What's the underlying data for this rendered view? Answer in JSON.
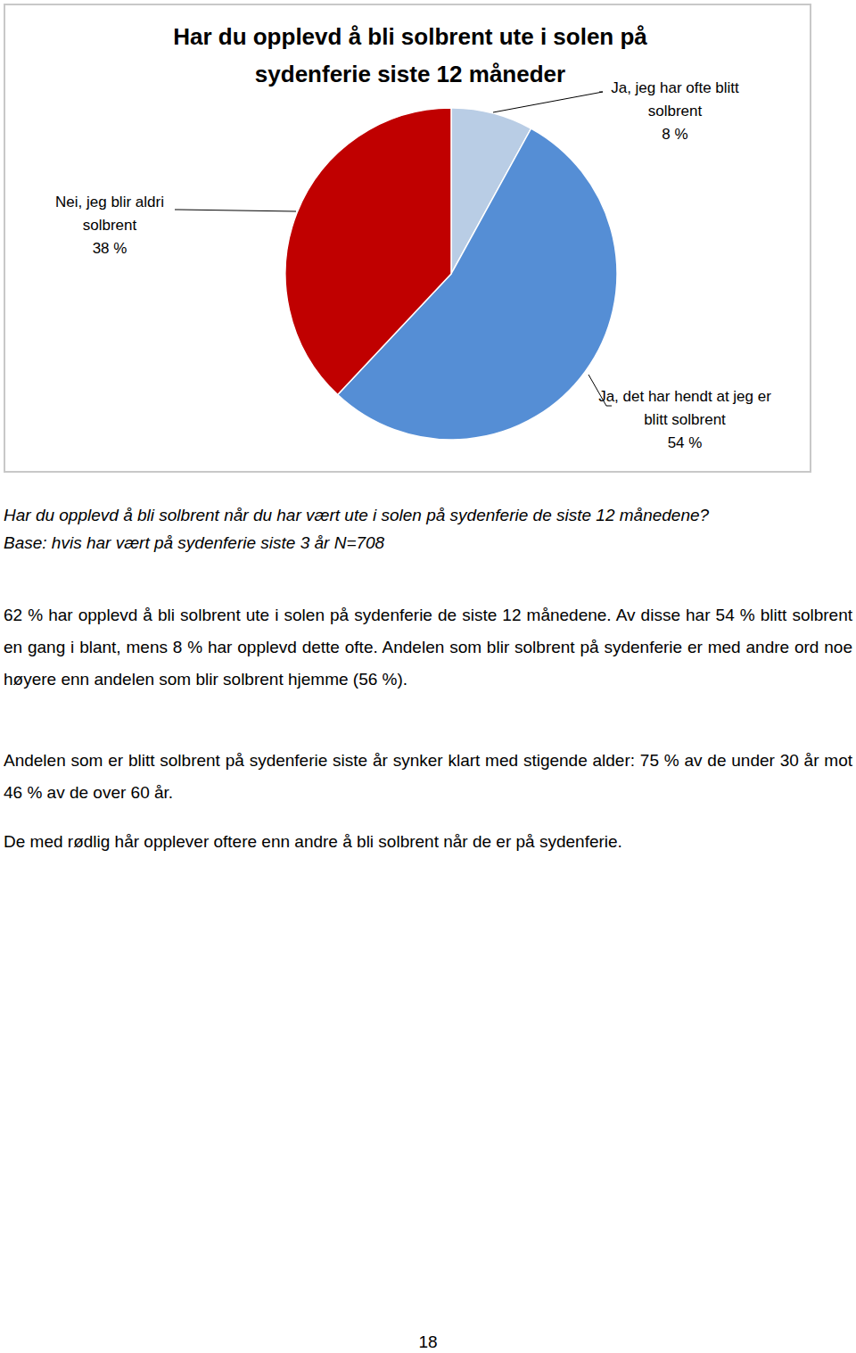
{
  "chart_data": {
    "type": "pie",
    "title": "Har du opplevd å bli solbrent ute i solen på sydenferie siste 12 måneder",
    "categories": [
      "Ja, jeg har ofte blitt solbrent",
      "Ja, det har hendt at jeg er blitt solbrent",
      "Nei, jeg blir aldri solbrent"
    ],
    "values": [
      8,
      54,
      38
    ],
    "value_labels": [
      "8 %",
      "54 %",
      "38 %"
    ],
    "colors": [
      "#b9cde5",
      "#558ed5",
      "#c00000"
    ],
    "data_labels": true
  },
  "caption": "Har du opplevd å bli solbrent når du har vært ute i solen på sydenferie de siste 12 månedene?",
  "base": "Base: hvis har vært på sydenferie siste 3 år N=708",
  "paragraphs": [
    "62 % har opplevd å bli solbrent ute i solen på sydenferie de siste 12 månedene. Av disse har 54 % blitt solbrent en gang i blant, mens 8 % har opplevd dette ofte. Andelen som blir solbrent på sydenferie er med andre ord noe høyere enn andelen som blir solbrent hjemme (56 %).",
    "Andelen som er blitt solbrent på sydenferie siste år synker klart med stigende alder: 75 % av de under 30 år mot 46 % av de over 60 år.",
    "De med rødlig hår opplever oftere enn andre å bli solbrent når de er på sydenferie."
  ],
  "page_number": "18"
}
